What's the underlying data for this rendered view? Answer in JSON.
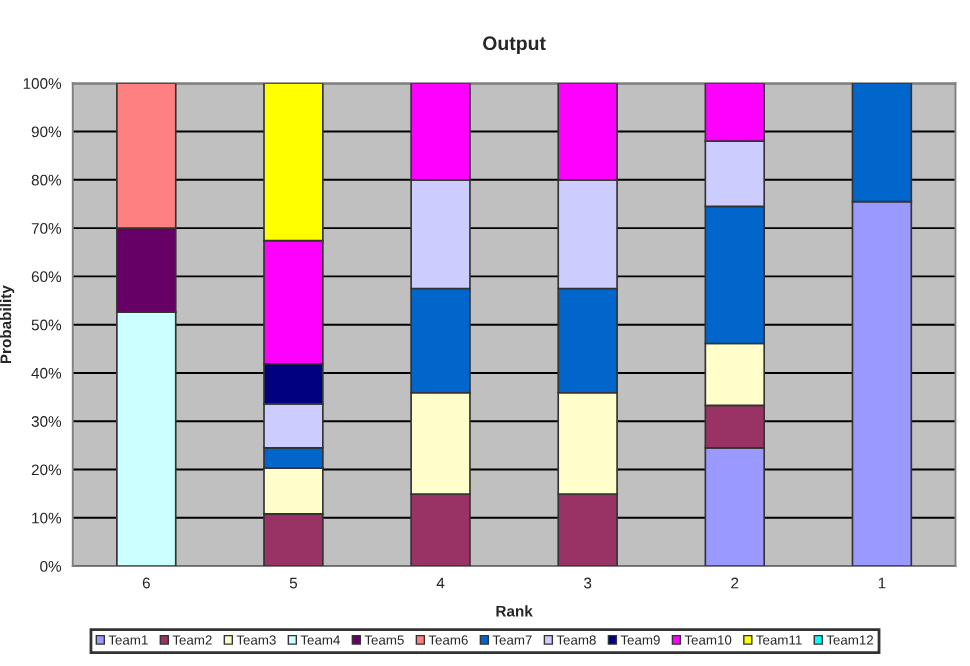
{
  "chart_data": {
    "type": "bar",
    "title": "Output",
    "xlabel": "Rank",
    "ylabel": "Probability",
    "stacked": true,
    "categories": [
      "6",
      "5",
      "4",
      "3",
      "2",
      "1"
    ],
    "series": [
      {
        "name": "Team1",
        "color": "#9999ff",
        "values": [
          null,
          null,
          null,
          null,
          24.5,
          75.5
        ]
      },
      {
        "name": "Team2",
        "color": "#993366",
        "values": [
          null,
          10.8,
          14.9,
          14.9,
          8.8,
          null
        ]
      },
      {
        "name": "Team3",
        "color": "#ffffcc",
        "values": [
          null,
          9.5,
          21,
          21,
          12.8,
          null
        ]
      },
      {
        "name": "Team4",
        "color": "#ccffff",
        "values": [
          52.6,
          null,
          null,
          null,
          null,
          null
        ]
      },
      {
        "name": "Team5",
        "color": "#660066",
        "values": [
          17.4,
          null,
          null,
          null,
          null,
          null
        ]
      },
      {
        "name": "Team6",
        "color": "#ff8080",
        "values": [
          30,
          null,
          null,
          null,
          null,
          null
        ]
      },
      {
        "name": "Team7",
        "color": "#0066cc",
        "values": [
          null,
          4.2,
          21.6,
          21.6,
          28.4,
          24.5
        ]
      },
      {
        "name": "Team8",
        "color": "#ccccff",
        "values": [
          null,
          9.1,
          22.5,
          22.5,
          13.5,
          null
        ]
      },
      {
        "name": "Team9",
        "color": "#000080",
        "values": [
          null,
          8.3,
          null,
          null,
          null,
          null
        ]
      },
      {
        "name": "Team10",
        "color": "#ff00ff",
        "values": [
          null,
          25.5,
          20,
          20,
          12,
          null
        ]
      },
      {
        "name": "Team11",
        "color": "#ffff00",
        "values": [
          null,
          32.6,
          null,
          null,
          null,
          null
        ]
      },
      {
        "name": "Team12",
        "color": "#00ffff",
        "values": [
          null,
          null,
          null,
          null,
          null,
          null
        ]
      }
    ],
    "ylim": [
      0,
      100
    ],
    "yticks": [
      {
        "value": 0,
        "label": "0%"
      },
      {
        "value": 10,
        "label": "10%"
      },
      {
        "value": 20,
        "label": "20%"
      },
      {
        "value": 30,
        "label": "30%"
      },
      {
        "value": 40,
        "label": "40%"
      },
      {
        "value": 50,
        "label": "50%"
      },
      {
        "value": 60,
        "label": "60%"
      },
      {
        "value": 70,
        "label": "70%"
      },
      {
        "value": 80,
        "label": "80%"
      },
      {
        "value": 90,
        "label": "90%"
      },
      {
        "value": 100,
        "label": "100%"
      }
    ],
    "grid": "y",
    "legend": "bottom"
  }
}
